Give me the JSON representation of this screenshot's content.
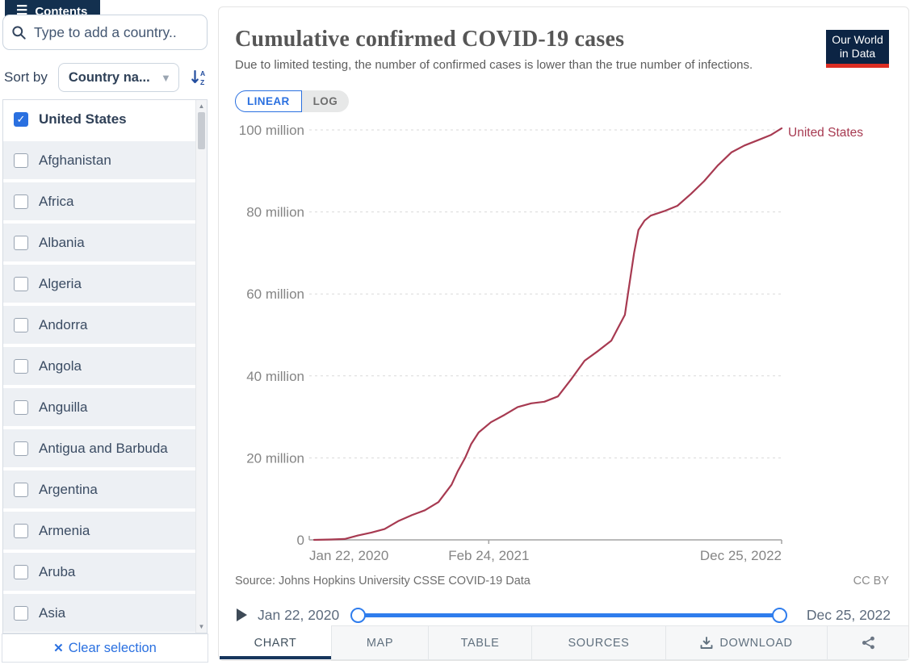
{
  "sidebar": {
    "contents_button": "Contents",
    "search_placeholder": "Type to add a country..",
    "sort_by_label": "Sort by",
    "sort_dropdown_value": "Country na...",
    "clear_selection_label": "Clear selection",
    "clear_icon": "✕",
    "countries": [
      {
        "name": "United States",
        "checked": true
      },
      {
        "name": "Afghanistan",
        "checked": false
      },
      {
        "name": "Africa",
        "checked": false
      },
      {
        "name": "Albania",
        "checked": false
      },
      {
        "name": "Algeria",
        "checked": false
      },
      {
        "name": "Andorra",
        "checked": false
      },
      {
        "name": "Angola",
        "checked": false
      },
      {
        "name": "Anguilla",
        "checked": false
      },
      {
        "name": "Antigua and Barbuda",
        "checked": false
      },
      {
        "name": "Argentina",
        "checked": false
      },
      {
        "name": "Armenia",
        "checked": false
      },
      {
        "name": "Aruba",
        "checked": false
      },
      {
        "name": "Asia",
        "checked": false
      }
    ]
  },
  "header": {
    "title": "Cumulative confirmed COVID-19 cases",
    "subtitle": "Due to limited testing, the number of confirmed cases is lower than the true number of infections.",
    "logo_line1": "Our World",
    "logo_line2": "in Data"
  },
  "toolbar": {
    "linear_label": "LINEAR",
    "log_label": "LOG"
  },
  "chart_data": {
    "type": "line",
    "title": "Cumulative confirmed COVID-19 cases",
    "subtitle": "Due to limited testing, the number of confirmed cases is lower than the true number of infections.",
    "unit": "million cases",
    "x_range": [
      "2020-01-22",
      "2022-12-25"
    ],
    "ylim": [
      0,
      100
    ],
    "grid": "horizontal-dotted",
    "legend": "end-of-line-label",
    "y_ticks": [
      {
        "value": 0,
        "label": "0"
      },
      {
        "value": 20,
        "label": "20 million"
      },
      {
        "value": 40,
        "label": "40 million"
      },
      {
        "value": 60,
        "label": "60 million"
      },
      {
        "value": 80,
        "label": "80 million"
      },
      {
        "value": 100,
        "label": "100 million"
      }
    ],
    "x_ticks": [
      {
        "date": "2020-01-22",
        "label": "Jan 22, 2020",
        "anchor": "start"
      },
      {
        "date": "2021-02-24",
        "label": "Feb 24, 2021",
        "anchor": "middle"
      },
      {
        "date": "2022-12-25",
        "label": "Dec 25, 2022",
        "anchor": "end"
      }
    ],
    "series": [
      {
        "name": "United States",
        "color": "#a73a51",
        "points": [
          [
            "2020-01-22",
            0.0
          ],
          [
            "2020-03-01",
            0.1
          ],
          [
            "2020-04-01",
            0.21
          ],
          [
            "2020-05-01",
            1.07
          ],
          [
            "2020-06-01",
            1.79
          ],
          [
            "2020-07-01",
            2.64
          ],
          [
            "2020-08-01",
            4.56
          ],
          [
            "2020-09-01",
            6.03
          ],
          [
            "2020-10-01",
            7.23
          ],
          [
            "2020-11-01",
            9.21
          ],
          [
            "2020-12-01",
            13.45
          ],
          [
            "2020-12-15",
            16.7
          ],
          [
            "2021-01-01",
            20.0
          ],
          [
            "2021-01-15",
            23.4
          ],
          [
            "2021-02-01",
            26.2
          ],
          [
            "2021-03-01",
            28.7
          ],
          [
            "2021-04-01",
            30.5
          ],
          [
            "2021-05-01",
            32.4
          ],
          [
            "2021-06-01",
            33.3
          ],
          [
            "2021-07-01",
            33.7
          ],
          [
            "2021-08-01",
            35.0
          ],
          [
            "2021-09-01",
            39.3
          ],
          [
            "2021-10-01",
            43.7
          ],
          [
            "2021-11-01",
            46.1
          ],
          [
            "2021-12-01",
            48.6
          ],
          [
            "2022-01-01",
            54.9
          ],
          [
            "2022-01-08",
            60.0
          ],
          [
            "2022-01-15",
            65.0
          ],
          [
            "2022-01-22",
            70.0
          ],
          [
            "2022-02-01",
            75.6
          ],
          [
            "2022-02-15",
            77.9
          ],
          [
            "2022-03-01",
            79.1
          ],
          [
            "2022-04-01",
            80.2
          ],
          [
            "2022-05-01",
            81.5
          ],
          [
            "2022-06-01",
            84.4
          ],
          [
            "2022-07-01",
            87.5
          ],
          [
            "2022-08-01",
            91.3
          ],
          [
            "2022-09-01",
            94.5
          ],
          [
            "2022-10-01",
            96.2
          ],
          [
            "2022-11-01",
            97.5
          ],
          [
            "2022-12-01",
            98.8
          ],
          [
            "2022-12-25",
            100.4
          ]
        ]
      }
    ]
  },
  "footer": {
    "source_text": "Source: Johns Hopkins University CSSE COVID-19 Data",
    "license": "CC BY"
  },
  "timeline": {
    "start": "Jan 22, 2020",
    "end": "Dec 25, 2022"
  },
  "tabs": [
    {
      "label": "CHART",
      "active": true
    },
    {
      "label": "MAP",
      "active": false
    },
    {
      "label": "TABLE",
      "active": false
    },
    {
      "label": "SOURCES",
      "active": false
    },
    {
      "label": "DOWNLOAD",
      "active": false
    }
  ],
  "colors": {
    "accent_blue": "#2a70e0",
    "slider_blue": "#2f7ded",
    "line_red": "#a73a51",
    "navy": "#13304f",
    "logo_navy": "#0c2444",
    "logo_red": "#dc2e23",
    "active_tab_underline": "#17365d"
  }
}
